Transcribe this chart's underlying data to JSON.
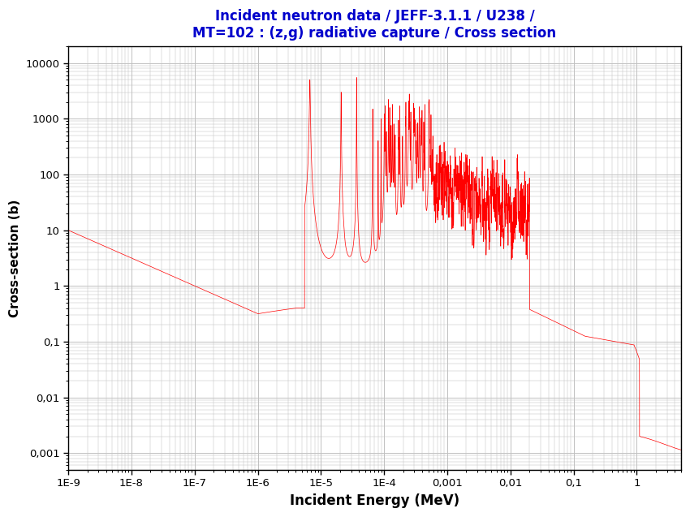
{
  "title_line1": "Incident neutron data / JEFF-3.1.1 / U238 /",
  "title_line2": "MT=102 : (z,g) radiative capture / Cross section",
  "title_color": "#0000CC",
  "title_fontsize": 12,
  "xlabel": "Incident Energy (MeV)",
  "ylabel": "Cross-section (b)",
  "xlabel_fontsize": 12,
  "ylabel_fontsize": 11,
  "xmin": 1e-09,
  "xmax": 5.0,
  "ymin": 0.0005,
  "ymax": 20000,
  "line_color": "#FF0000",
  "background_color": "#FFFFFF",
  "grid_color": "#C0C0C0",
  "xtick_labels": [
    "1E-9",
    "1E-8",
    "1E-7",
    "1E-6",
    "1E-5",
    "1E-4",
    "0,001",
    "0,01",
    "0,1",
    "1"
  ],
  "xtick_positions": [
    1e-09,
    1e-08,
    1e-07,
    1e-06,
    1e-05,
    0.0001,
    0.001,
    0.01,
    0.1,
    1.0
  ],
  "ytick_labels": [
    "10000",
    "1000",
    "100",
    "10",
    "1",
    "0,1",
    "0,01",
    "0,001"
  ],
  "ytick_positions": [
    10000,
    1000,
    100,
    10,
    1,
    0.1,
    0.01,
    0.001
  ]
}
